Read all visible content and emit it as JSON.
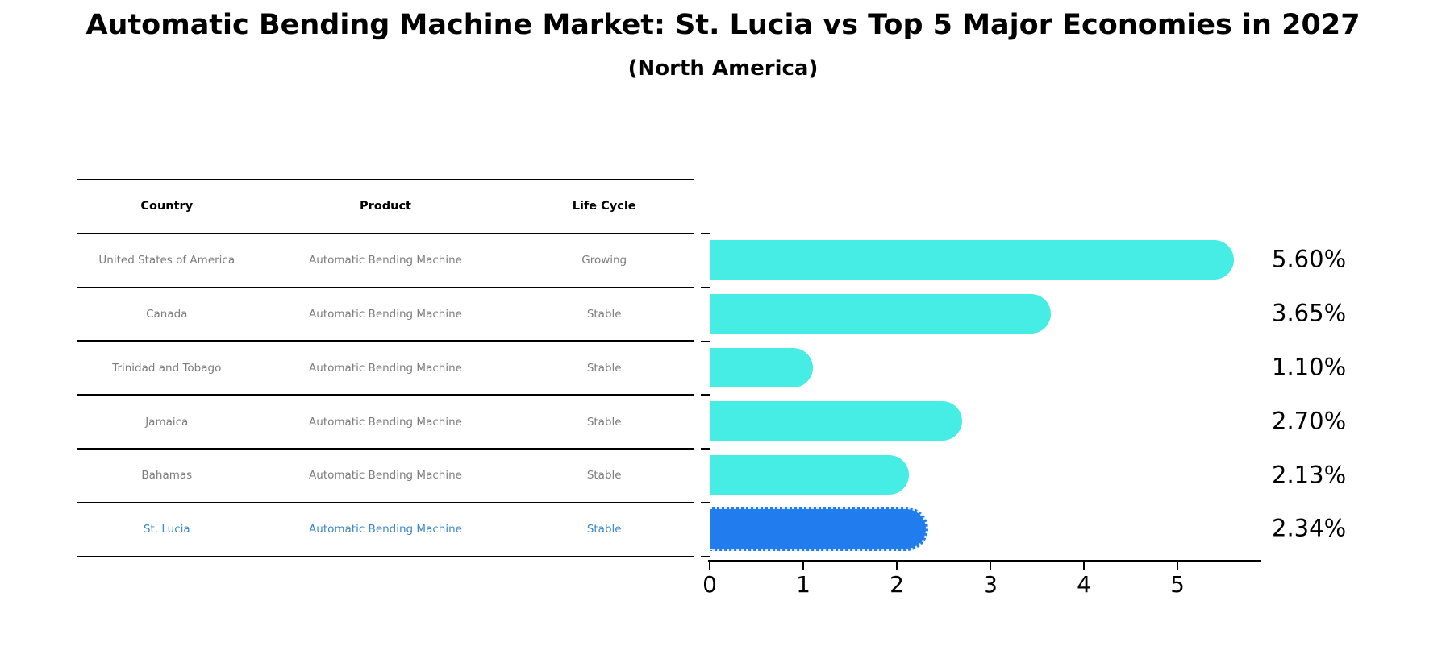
{
  "title": "Automatic Bending Machine Market: St. Lucia vs Top 5 Major Economies in 2027",
  "subtitle": "(North America)",
  "table": {
    "headers": [
      "Country",
      "Product",
      "Life Cycle"
    ],
    "rows": [
      {
        "country": "United States of America",
        "product": "Automatic Bending Machine",
        "life_cycle": "Growing",
        "highlight": false
      },
      {
        "country": "Canada",
        "product": "Automatic Bending Machine",
        "life_cycle": "Stable",
        "highlight": false
      },
      {
        "country": "Trinidad and Tobago",
        "product": "Automatic Bending Machine",
        "life_cycle": "Stable",
        "highlight": false
      },
      {
        "country": "Jamaica",
        "product": "Automatic Bending Machine",
        "life_cycle": "Stable",
        "highlight": false
      },
      {
        "country": "Bahamas",
        "product": "Automatic Bending Machine",
        "life_cycle": "Stable",
        "highlight": false
      },
      {
        "country": "St. Lucia",
        "product": "Automatic Bending Machine",
        "life_cycle": "Stable",
        "highlight": true
      }
    ]
  },
  "chart_data": {
    "type": "bar",
    "orientation": "horizontal",
    "title": "Automatic Bending Machine Market: St. Lucia vs Top 5 Major Economies in 2027 (North America)",
    "categories": [
      "United States of America",
      "Canada",
      "Trinidad and Tobago",
      "Jamaica",
      "Bahamas",
      "St. Lucia"
    ],
    "values": [
      5.6,
      3.65,
      1.1,
      2.7,
      2.13,
      2.34
    ],
    "value_labels": [
      "5.60%",
      "3.65%",
      "1.10%",
      "2.70%",
      "2.13%",
      "2.34%"
    ],
    "x_ticks": [
      0,
      1,
      2,
      3,
      4,
      5
    ],
    "xlim": [
      0,
      5.88
    ],
    "xlabel": "",
    "ylabel": "",
    "grid": false,
    "legend": false,
    "bar_color": "#45ede5",
    "highlight_color": "#217ced",
    "highlight_index": 5,
    "highlight_edge_style": "dotted"
  }
}
